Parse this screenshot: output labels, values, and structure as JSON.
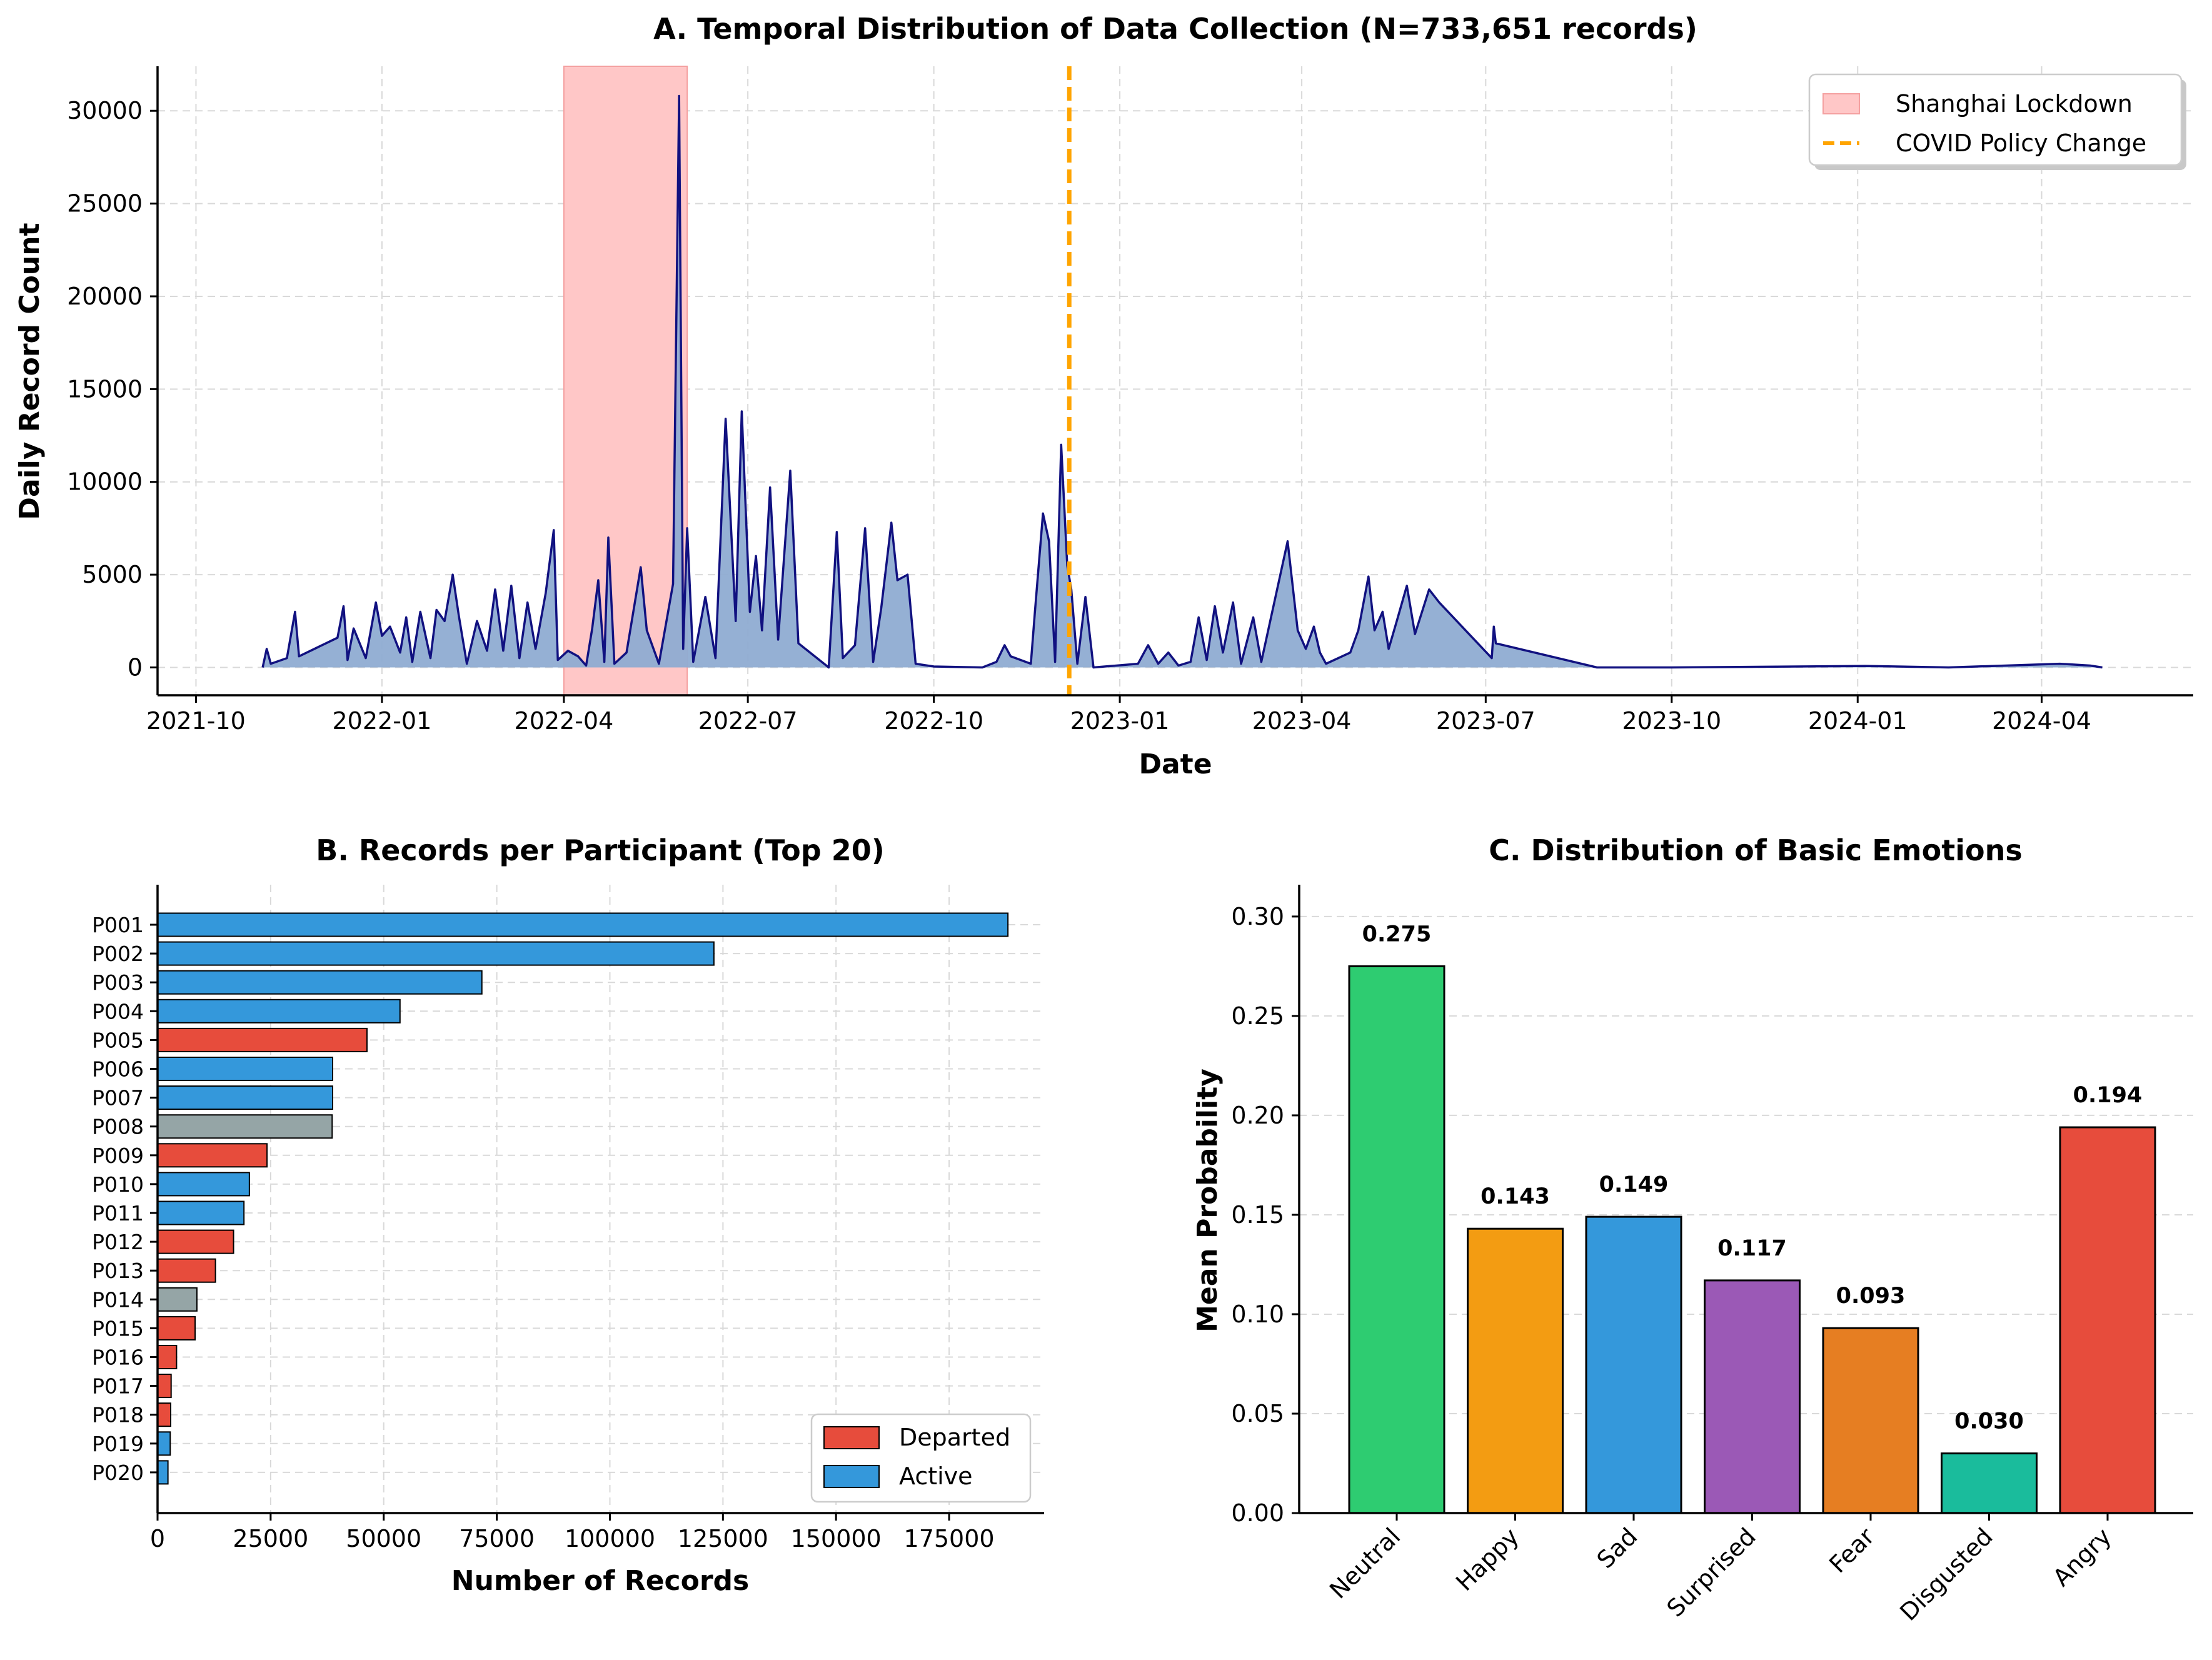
{
  "colors": {
    "active": "#3498db",
    "departed": "#e74c3c",
    "other": "#95a5a6",
    "line": "#111180",
    "fill": "#8facd2",
    "lockdown": "#ffc7c7",
    "policy": "#ffa500"
  },
  "chart_data": [
    {
      "type": "area",
      "title": "A. Temporal Distribution of Data Collection (N=733,651 records)",
      "xlabel": "Date",
      "ylabel": "Daily Record Count",
      "x_range": [
        "2021-09-12",
        "2024-06-15"
      ],
      "ylim": [
        -1500,
        32400
      ],
      "x_ticks": [
        "2021-10",
        "2022-01",
        "2022-04",
        "2022-07",
        "2022-10",
        "2023-01",
        "2023-04",
        "2023-07",
        "2023-10",
        "2024-01",
        "2024-04"
      ],
      "y_ticks": [
        0,
        5000,
        10000,
        15000,
        20000,
        25000,
        30000
      ],
      "grid": true,
      "legend_position": "top-right",
      "shaded_region": {
        "label": "Shanghai Lockdown",
        "start": "2022-04-01",
        "end": "2022-06-01"
      },
      "vline": {
        "label": "COVID Policy Change",
        "date": "2022-12-07"
      },
      "series": [
        {
          "name": "Daily Record Count",
          "points": [
            [
              "2021-11-03",
              0
            ],
            [
              "2021-11-05",
              1000
            ],
            [
              "2021-11-07",
              200
            ],
            [
              "2021-11-15",
              500
            ],
            [
              "2021-11-19",
              3000
            ],
            [
              "2021-11-21",
              600
            ],
            [
              "2021-12-10",
              1600
            ],
            [
              "2021-12-13",
              3300
            ],
            [
              "2021-12-15",
              400
            ],
            [
              "2021-12-18",
              2100
            ],
            [
              "2021-12-24",
              500
            ],
            [
              "2021-12-29",
              3500
            ],
            [
              "2022-01-01",
              1700
            ],
            [
              "2022-01-05",
              2200
            ],
            [
              "2022-01-10",
              800
            ],
            [
              "2022-01-13",
              2700
            ],
            [
              "2022-01-16",
              300
            ],
            [
              "2022-01-20",
              3000
            ],
            [
              "2022-01-25",
              500
            ],
            [
              "2022-01-28",
              3100
            ],
            [
              "2022-02-01",
              2500
            ],
            [
              "2022-02-05",
              5000
            ],
            [
              "2022-02-08",
              2800
            ],
            [
              "2022-02-12",
              200
            ],
            [
              "2022-02-17",
              2500
            ],
            [
              "2022-02-22",
              900
            ],
            [
              "2022-02-26",
              4200
            ],
            [
              "2022-03-02",
              900
            ],
            [
              "2022-03-06",
              4400
            ],
            [
              "2022-03-10",
              500
            ],
            [
              "2022-03-14",
              3500
            ],
            [
              "2022-03-18",
              1000
            ],
            [
              "2022-03-23",
              4000
            ],
            [
              "2022-03-27",
              7400
            ],
            [
              "2022-03-29",
              400
            ],
            [
              "2022-04-03",
              900
            ],
            [
              "2022-04-08",
              600
            ],
            [
              "2022-04-12",
              100
            ],
            [
              "2022-04-15",
              2100
            ],
            [
              "2022-04-18",
              4700
            ],
            [
              "2022-04-21",
              300
            ],
            [
              "2022-04-23",
              7000
            ],
            [
              "2022-04-26",
              200
            ],
            [
              "2022-05-02",
              800
            ],
            [
              "2022-05-09",
              5400
            ],
            [
              "2022-05-12",
              2000
            ],
            [
              "2022-05-18",
              200
            ],
            [
              "2022-05-25",
              4500
            ],
            [
              "2022-05-28",
              30800
            ],
            [
              "2022-05-30",
              1000
            ],
            [
              "2022-06-01",
              7500
            ],
            [
              "2022-06-04",
              300
            ],
            [
              "2022-06-10",
              3800
            ],
            [
              "2022-06-15",
              500
            ],
            [
              "2022-06-20",
              13400
            ],
            [
              "2022-06-25",
              2500
            ],
            [
              "2022-06-28",
              13800
            ],
            [
              "2022-07-02",
              3000
            ],
            [
              "2022-07-05",
              6000
            ],
            [
              "2022-07-08",
              2000
            ],
            [
              "2022-07-12",
              9700
            ],
            [
              "2022-07-16",
              1500
            ],
            [
              "2022-07-22",
              10600
            ],
            [
              "2022-07-26",
              1300
            ],
            [
              "2022-08-10",
              0
            ],
            [
              "2022-08-14",
              7300
            ],
            [
              "2022-08-17",
              500
            ],
            [
              "2022-08-23",
              1200
            ],
            [
              "2022-08-28",
              7500
            ],
            [
              "2022-09-01",
              300
            ],
            [
              "2022-09-05",
              3200
            ],
            [
              "2022-09-10",
              7800
            ],
            [
              "2022-09-13",
              4700
            ],
            [
              "2022-09-18",
              5000
            ],
            [
              "2022-09-22",
              200
            ],
            [
              "2022-10-01",
              50
            ],
            [
              "2022-10-25",
              0
            ],
            [
              "2022-11-01",
              300
            ],
            [
              "2022-11-05",
              1200
            ],
            [
              "2022-11-08",
              600
            ],
            [
              "2022-11-18",
              200
            ],
            [
              "2022-11-20",
              3000
            ],
            [
              "2022-11-24",
              8300
            ],
            [
              "2022-11-27",
              6800
            ],
            [
              "2022-11-30",
              300
            ],
            [
              "2022-12-03",
              12000
            ],
            [
              "2022-12-06",
              5500
            ],
            [
              "2022-12-08",
              4200
            ],
            [
              "2022-12-11",
              200
            ],
            [
              "2022-12-15",
              3800
            ],
            [
              "2022-12-19",
              0
            ],
            [
              "2023-01-10",
              200
            ],
            [
              "2023-01-15",
              1200
            ],
            [
              "2023-01-20",
              200
            ],
            [
              "2023-01-25",
              800
            ],
            [
              "2023-01-30",
              100
            ],
            [
              "2023-02-05",
              300
            ],
            [
              "2023-02-09",
              2700
            ],
            [
              "2023-02-13",
              400
            ],
            [
              "2023-02-17",
              3300
            ],
            [
              "2023-02-21",
              800
            ],
            [
              "2023-02-26",
              3500
            ],
            [
              "2023-03-02",
              200
            ],
            [
              "2023-03-08",
              2700
            ],
            [
              "2023-03-12",
              300
            ],
            [
              "2023-03-25",
              6800
            ],
            [
              "2023-03-30",
              2000
            ],
            [
              "2023-04-03",
              1000
            ],
            [
              "2023-04-07",
              2200
            ],
            [
              "2023-04-10",
              800
            ],
            [
              "2023-04-13",
              200
            ],
            [
              "2023-04-25",
              800
            ],
            [
              "2023-04-29",
              2000
            ],
            [
              "2023-05-04",
              4900
            ],
            [
              "2023-05-07",
              2000
            ],
            [
              "2023-05-11",
              3000
            ],
            [
              "2023-05-14",
              1000
            ],
            [
              "2023-05-18",
              2500
            ],
            [
              "2023-05-23",
              4400
            ],
            [
              "2023-05-27",
              1800
            ],
            [
              "2023-06-03",
              4200
            ],
            [
              "2023-06-08",
              3500
            ],
            [
              "2023-07-04",
              500
            ],
            [
              "2023-07-05",
              2200
            ],
            [
              "2023-07-06",
              1300
            ],
            [
              "2023-08-25",
              0
            ],
            [
              "2023-10-01",
              0
            ],
            [
              "2024-01-05",
              80
            ],
            [
              "2024-02-15",
              0
            ],
            [
              "2024-04-10",
              200
            ],
            [
              "2024-04-25",
              100
            ],
            [
              "2024-05-01",
              0
            ]
          ]
        }
      ]
    },
    {
      "type": "bar",
      "orientation": "horizontal",
      "title": "B. Records per Participant (Top 20)",
      "xlabel": "Number of Records",
      "ylabel": "",
      "xlim": [
        0,
        196000
      ],
      "x_ticks": [
        0,
        25000,
        50000,
        75000,
        100000,
        125000,
        150000,
        175000
      ],
      "grid": true,
      "legend_position": "lower-right",
      "legend": [
        "Departed",
        "Active"
      ],
      "categories": [
        "P001",
        "P002",
        "P003",
        "P004",
        "P005",
        "P006",
        "P007",
        "P008",
        "P009",
        "P010",
        "P011",
        "P012",
        "P013",
        "P014",
        "P015",
        "P016",
        "P017",
        "P018",
        "P019",
        "P020"
      ],
      "values": [
        188000,
        123000,
        71700,
        53600,
        46300,
        38700,
        38700,
        38600,
        24200,
        20300,
        19100,
        16800,
        12800,
        8700,
        8300,
        4200,
        3000,
        2900,
        2800,
        2300
      ],
      "status": [
        "active",
        "active",
        "active",
        "active",
        "departed",
        "active",
        "active",
        "other",
        "departed",
        "active",
        "active",
        "departed",
        "departed",
        "other",
        "departed",
        "departed",
        "departed",
        "departed",
        "active",
        "active"
      ]
    },
    {
      "type": "bar",
      "title": "C. Distribution of Basic Emotions",
      "xlabel": "",
      "ylabel": "Mean Probability",
      "ylim": [
        0,
        0.316
      ],
      "y_ticks": [
        "0.00",
        "0.05",
        "0.10",
        "0.15",
        "0.20",
        "0.25",
        "0.30"
      ],
      "grid": true,
      "categories": [
        "Neutral",
        "Happy",
        "Sad",
        "Surprised",
        "Fear",
        "Disgusted",
        "Angry"
      ],
      "values": [
        0.275,
        0.143,
        0.149,
        0.117,
        0.093,
        0.03,
        0.194
      ],
      "value_labels": [
        "0.275",
        "0.143",
        "0.149",
        "0.117",
        "0.093",
        "0.030",
        "0.194"
      ],
      "bar_colors": [
        "#2ecc71",
        "#f39c12",
        "#3498db",
        "#9b59b6",
        "#e67e22",
        "#1abc9c",
        "#e74c3c"
      ]
    }
  ]
}
